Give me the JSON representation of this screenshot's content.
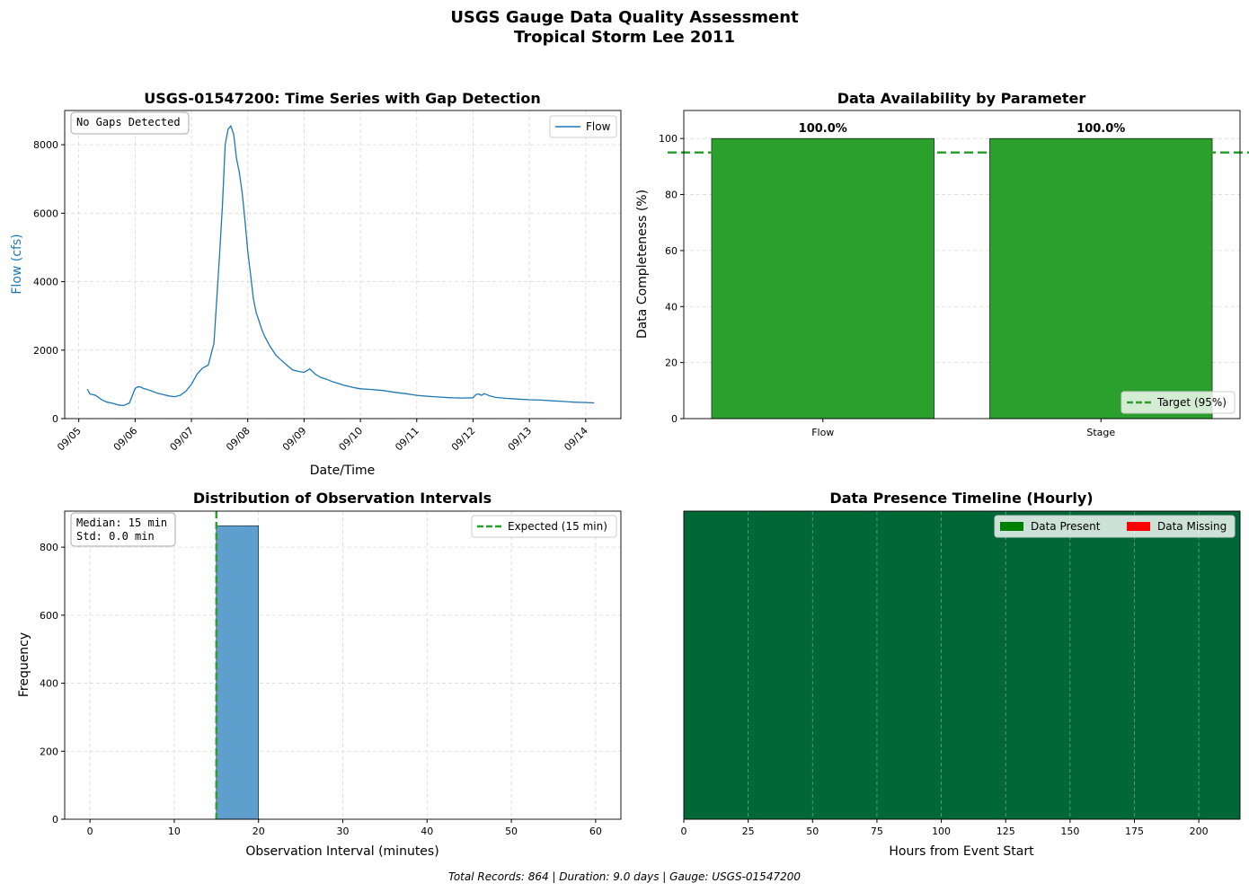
{
  "figure": {
    "title_line1": "USGS Gauge Data Quality Assessment",
    "title_line2": "Tropical Storm Lee 2011",
    "footer": "Total Records: 864 | Duration: 9.0 days | Gauge: USGS-01547200"
  },
  "colors": {
    "flow": "#1f77b4",
    "target": "#2ca02c",
    "bar_full": "#2ca02c",
    "hist": "#5f9fce",
    "present": "#006837",
    "legend_present": "#008000",
    "legend_missing": "#ff0000"
  },
  "chart_data": [
    {
      "type": "line",
      "title": "USGS-01547200: Time Series with Gap Detection",
      "xlabel": "Date/Time",
      "ylabel": "Flow (cfs)",
      "xtick_labels": [
        "09/05",
        "09/06",
        "09/07",
        "09/08",
        "09/09",
        "09/10",
        "09/11",
        "09/12",
        "09/13",
        "09/14"
      ],
      "yticks": [
        0,
        2000,
        4000,
        6000,
        8000
      ],
      "ylim": [
        0,
        9000
      ],
      "xlim_days": [
        -0.25,
        9.625
      ],
      "grid": true,
      "legend": "upper right",
      "annotation": "No Gaps Detected",
      "series": [
        {
          "name": "Flow",
          "x_days": [
            0.15,
            0.2,
            0.3,
            0.4,
            0.5,
            0.6,
            0.7,
            0.8,
            0.9,
            1.0,
            1.05,
            1.1,
            1.15,
            1.2,
            1.3,
            1.4,
            1.5,
            1.6,
            1.7,
            1.8,
            1.9,
            2.0,
            2.1,
            2.2,
            2.3,
            2.4,
            2.5,
            2.55,
            2.6,
            2.65,
            2.7,
            2.75,
            2.8,
            2.85,
            2.9,
            2.95,
            3.0,
            3.05,
            3.1,
            3.15,
            3.2,
            3.25,
            3.3,
            3.35,
            3.4,
            3.5,
            3.6,
            3.7,
            3.8,
            3.9,
            4.0,
            4.1,
            4.2,
            4.3,
            4.4,
            4.5,
            4.6,
            4.7,
            4.8,
            4.9,
            5.0,
            5.2,
            5.4,
            5.6,
            5.8,
            6.0,
            6.2,
            6.4,
            6.6,
            6.8,
            7.0,
            7.05,
            7.1,
            7.15,
            7.2,
            7.3,
            7.4,
            7.6,
            7.8,
            8.0,
            8.2,
            8.4,
            8.6,
            8.8,
            9.0,
            9.15
          ],
          "y": [
            860,
            720,
            680,
            560,
            480,
            450,
            400,
            380,
            460,
            880,
            930,
            920,
            880,
            860,
            800,
            740,
            700,
            660,
            640,
            680,
            800,
            1000,
            1300,
            1480,
            1560,
            2200,
            4800,
            6200,
            8000,
            8450,
            8550,
            8300,
            7600,
            7200,
            6600,
            5800,
            4900,
            4200,
            3500,
            3100,
            2850,
            2600,
            2400,
            2250,
            2100,
            1850,
            1700,
            1550,
            1420,
            1380,
            1350,
            1450,
            1300,
            1200,
            1150,
            1080,
            1030,
            980,
            940,
            900,
            870,
            850,
            820,
            770,
            730,
            680,
            650,
            630,
            610,
            600,
            610,
            700,
            720,
            680,
            730,
            660,
            620,
            590,
            570,
            550,
            540,
            520,
            500,
            480,
            470,
            460
          ]
        }
      ]
    },
    {
      "type": "bar",
      "title": "Data Availability by Parameter",
      "ylabel": "Data Completeness (%)",
      "categories": [
        "Flow",
        "Stage"
      ],
      "values": [
        100.0,
        100.0
      ],
      "value_labels": [
        "100.0%",
        "100.0%"
      ],
      "yticks": [
        0,
        20,
        40,
        60,
        80,
        100
      ],
      "ylim": [
        0,
        110
      ],
      "target": 95,
      "target_label": "Target (95%)",
      "grid": true,
      "legend": "lower right"
    },
    {
      "type": "bar",
      "title": "Distribution of Observation Intervals",
      "xlabel": "Observation Interval (minutes)",
      "ylabel": "Frequency",
      "bins": [
        [
          15,
          20,
          863
        ]
      ],
      "xticks": [
        0,
        10,
        20,
        30,
        40,
        50,
        60
      ],
      "yticks": [
        0,
        200,
        400,
        600,
        800
      ],
      "xlim": [
        -3,
        63
      ],
      "ylim": [
        0,
        906
      ],
      "expected": 15,
      "expected_label": "Expected (15 min)",
      "annotation_lines": [
        "Median: 15 min",
        "Std: 0.0 min"
      ],
      "grid": true,
      "legend": "upper right"
    },
    {
      "type": "heatmap",
      "title": "Data Presence Timeline (Hourly)",
      "xlabel": "Hours from Event Start",
      "xticks": [
        0,
        25,
        50,
        75,
        100,
        125,
        150,
        175,
        200
      ],
      "xlim": [
        0,
        216
      ],
      "present_hours": [
        0,
        216
      ],
      "legend_entries": [
        "Data Present",
        "Data Missing"
      ],
      "legend": "upper right"
    }
  ]
}
